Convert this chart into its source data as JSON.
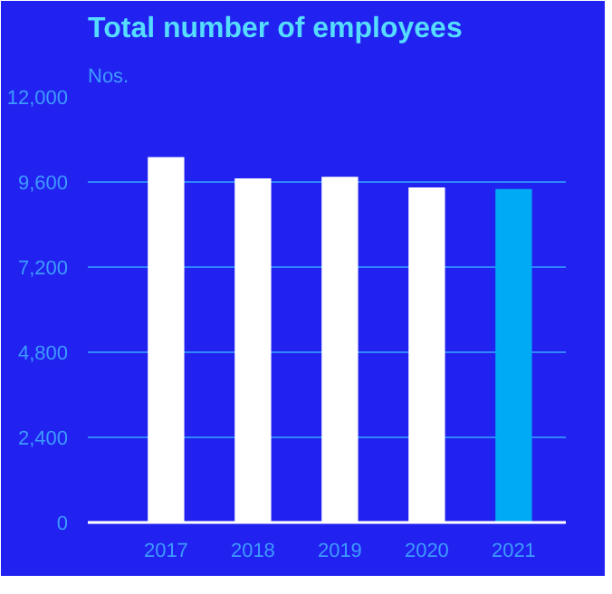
{
  "chart_data": {
    "type": "bar",
    "title": "Total number of employees",
    "ylabel": "Nos.",
    "categories": [
      "2017",
      "2018",
      "2019",
      "2020",
      "2021"
    ],
    "values": [
      10300,
      9700,
      9750,
      9450,
      9400
    ],
    "colors": [
      "#ffffff",
      "#ffffff",
      "#ffffff",
      "#ffffff",
      "#00aaf5"
    ],
    "ylim": [
      0,
      12000
    ],
    "yticks": [
      {
        "value": 0,
        "label": "0"
      },
      {
        "value": 2400,
        "label": "2,400"
      },
      {
        "value": 4800,
        "label": "4,800"
      },
      {
        "value": 7200,
        "label": "7,200"
      },
      {
        "value": 9600,
        "label": "9,600"
      },
      {
        "value": 12000,
        "label": "12,000"
      }
    ],
    "grid": "y"
  }
}
